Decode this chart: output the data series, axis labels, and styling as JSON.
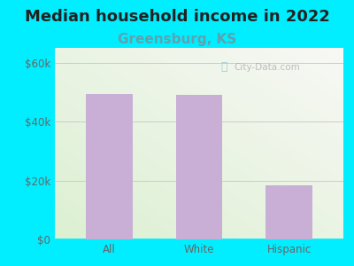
{
  "title": "Median household income in 2022",
  "subtitle": "Greensburg, KS",
  "categories": [
    "All",
    "White",
    "Hispanic"
  ],
  "values": [
    49500,
    49000,
    18500
  ],
  "bar_color": "#c9aed6",
  "title_fontsize": 13,
  "subtitle_fontsize": 11,
  "subtitle_color": "#5ba3b0",
  "tick_label_color": "#666666",
  "bg_outer": "#00eeff",
  "ylim": [
    0,
    65000
  ],
  "yticks": [
    0,
    20000,
    40000,
    60000
  ],
  "ytick_labels": [
    "$0",
    "$20k",
    "$40k",
    "$60k"
  ],
  "watermark": "City-Data.com",
  "grid_color": "#cccccc",
  "title_color": "#222222"
}
